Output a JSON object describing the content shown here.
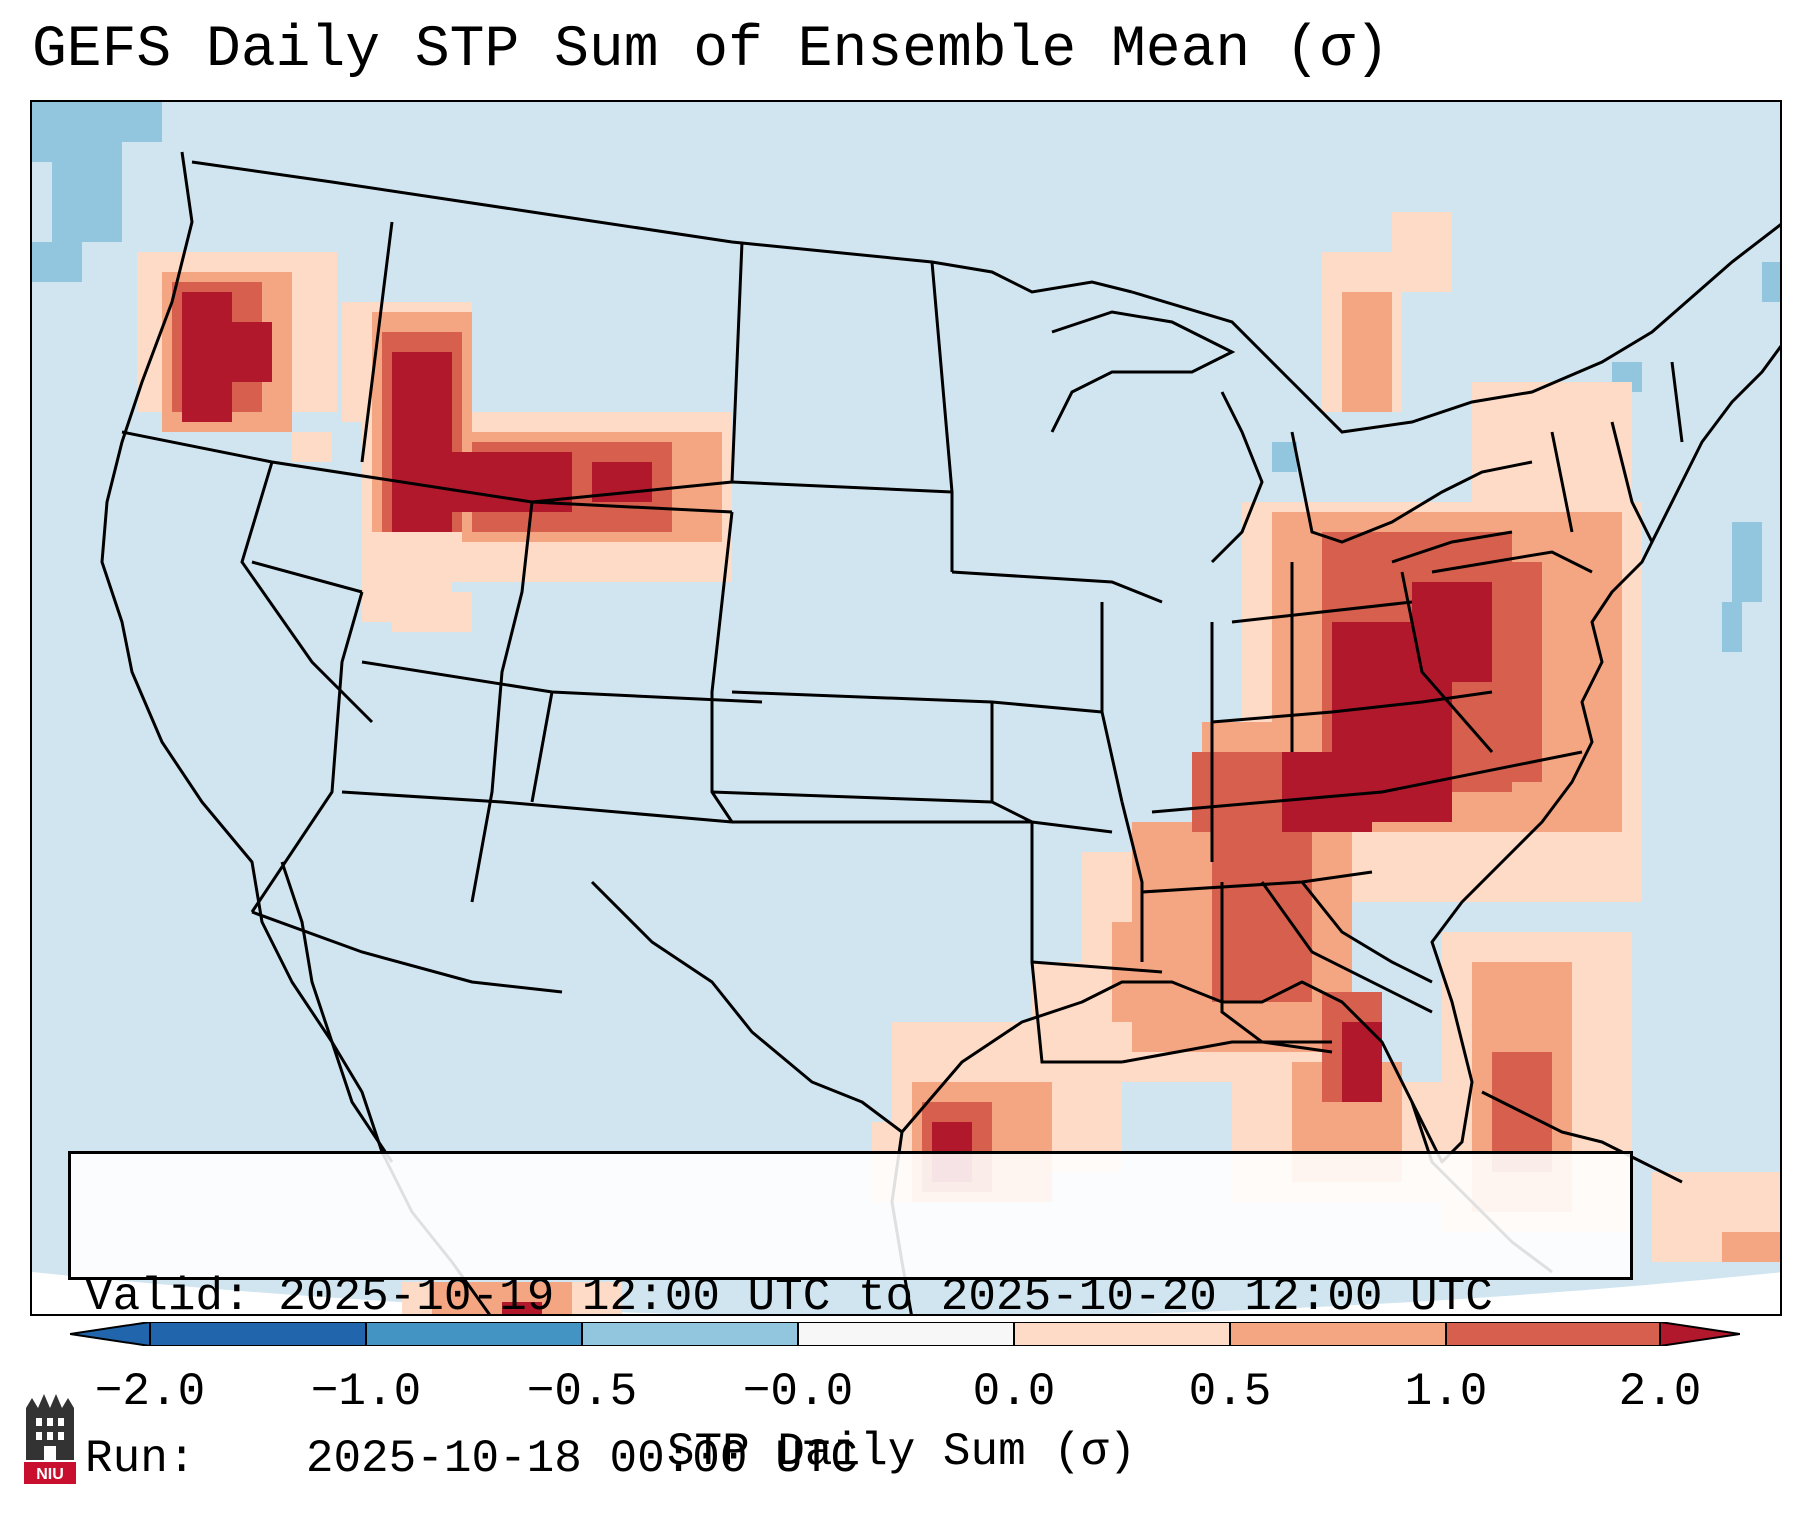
{
  "title": "GEFS Daily STP Sum of Ensemble Mean (σ)",
  "info": {
    "valid_label": "Valid:",
    "valid_value": "2025-10-19 12:00 UTC to 2025-10-20 12:00 UTC",
    "run_label": "Run:",
    "run_value": "2025-10-18 00:00 UTC"
  },
  "colorbar": {
    "label": "STP Daily Sum (σ)",
    "ticks": [
      "−2.0",
      "−1.0",
      "−0.5",
      "−0.0",
      "0.0",
      "0.5",
      "1.0",
      "2.0"
    ],
    "segment_colors": [
      "#2166ac",
      "#4393c3",
      "#92c5de",
      "#d1e5f0",
      "#f7f7f7",
      "#fddbc7",
      "#f4a582",
      "#d6604d",
      "#b2182b"
    ]
  },
  "map": {
    "ocean_color": "#d1e5f0",
    "land_background_color": "#d1e5f0",
    "border_color": "#000000",
    "highlight_regions": [
      {
        "name": "Pacific Northwest",
        "level": "high"
      },
      {
        "name": "Idaho / Montana / Wyoming",
        "level": "high"
      },
      {
        "name": "Ohio Valley / Tennessee Valley",
        "level": "high"
      },
      {
        "name": "Gulf Coast / Florida",
        "level": "moderate"
      },
      {
        "name": "Appalachians / Mid-Atlantic",
        "level": "high"
      },
      {
        "name": "Great Lakes / Ontario",
        "level": "moderate"
      }
    ]
  },
  "logo": {
    "text": "NIU"
  }
}
